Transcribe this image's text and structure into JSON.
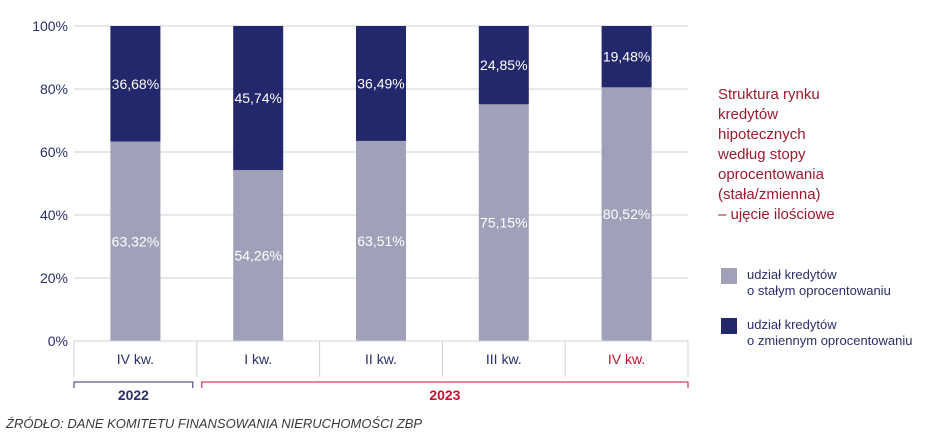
{
  "chart_data": {
    "type": "bar",
    "stacked": true,
    "categories": [
      "IV kw.",
      "I kw.",
      "II kw.",
      "III kw.",
      "IV kw."
    ],
    "years": [
      {
        "label": "2022",
        "span": [
          0,
          0
        ],
        "color": "#2a2f6b"
      },
      {
        "label": "2023",
        "span": [
          1,
          4
        ],
        "color": "#c8102e"
      }
    ],
    "category_colors": [
      "#2a2f6b",
      "#2a2f6b",
      "#2a2f6b",
      "#2a2f6b",
      "#c8102e"
    ],
    "series": [
      {
        "name": "udział kredytów o stałym oprocentowaniu",
        "values": [
          63.32,
          54.26,
          63.51,
          75.15,
          80.52
        ],
        "labels": [
          "63,32%",
          "54,26%",
          "63,51%",
          "75,15%",
          "80,52%"
        ],
        "color": "#a0a1b8"
      },
      {
        "name": "udział kredytów o zmiennym oprocentowaniu",
        "values": [
          36.68,
          45.74,
          36.49,
          24.85,
          19.48
        ],
        "labels": [
          "36,68%",
          "45,74%",
          "36,49%",
          "24,85%",
          "19,48%"
        ],
        "color": "#22286b"
      }
    ],
    "ylim": [
      0,
      100
    ],
    "yticks": [
      0,
      20,
      40,
      60,
      80,
      100
    ],
    "ytick_labels": [
      "0%",
      "20%",
      "40%",
      "60%",
      "80%",
      "100%"
    ],
    "grid": true,
    "title_lines": [
      "Struktura rynku",
      "kredytów",
      "hipotecznych",
      "według stopy",
      "oprocentowania",
      "(stała/zmienna)",
      "– ujęcie ilościowe"
    ],
    "legend": [
      {
        "lines": [
          "udział kredytów",
          "o stałym oprocentowaniu"
        ],
        "color": "#a0a1b8"
      },
      {
        "lines": [
          "udział kredytów",
          "o zmiennym oprocentowaniu"
        ],
        "color": "#22286b"
      }
    ],
    "legend_position": "right",
    "source": "ŹRÓDŁO: DANE KOMITETU FINANSOWANIA NIERUCHOMOŚCI ZBP"
  }
}
